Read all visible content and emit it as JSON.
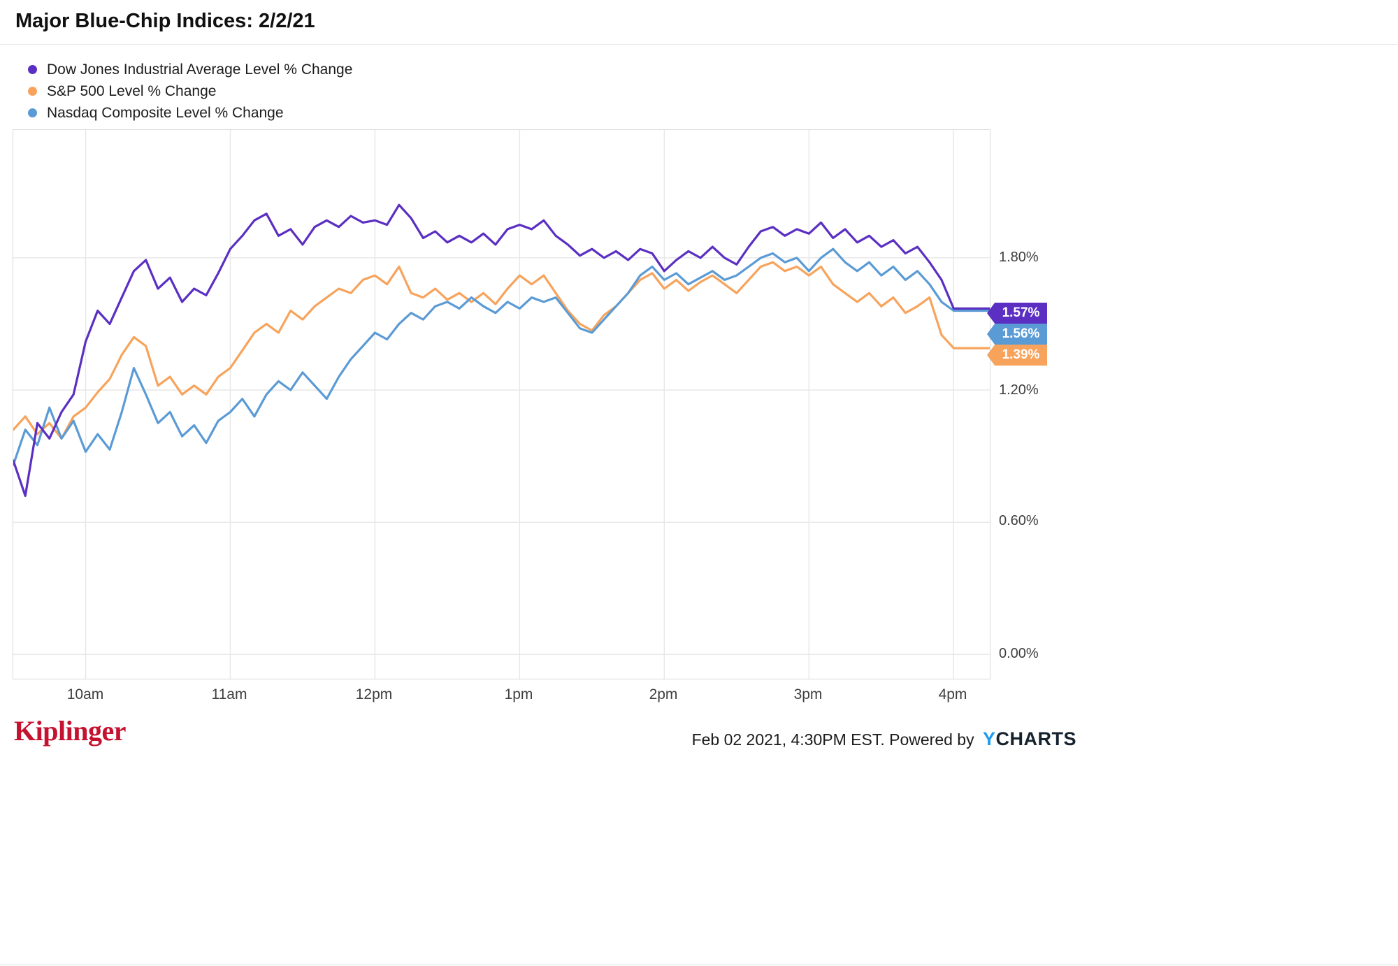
{
  "footer": {
    "publisher": "Kiplinger",
    "timestamp": "Feb 02 2021, 4:30PM EST.",
    "powered_by": "Powered by",
    "brand_y": "Y",
    "brand_rest": "CHARTS"
  },
  "chart_data": {
    "type": "line",
    "title": "Major Blue-Chip Indices: 2/2/21",
    "xlabel": "",
    "ylabel": "Level % Change",
    "grid": true,
    "legend_position": "top-left",
    "xlim": [
      9.5,
      16.25
    ],
    "ylim": [
      -0.11,
      2.38
    ],
    "x_axis": {
      "unit": "time of day",
      "start_hour": 9.5,
      "step_minutes": 5,
      "tick_hours": [
        10,
        11,
        12,
        13,
        14,
        15,
        16
      ],
      "tick_labels": [
        "10am",
        "11am",
        "12pm",
        "1pm",
        "2pm",
        "3pm",
        "4pm"
      ]
    },
    "y_axis": {
      "unit": "%",
      "tick_values": [
        1.8,
        1.2,
        0.6,
        0.0
      ],
      "tick_labels": [
        "1.80%",
        "1.20%",
        "0.60%",
        "0.00%"
      ]
    },
    "draw_order": [
      1,
      2,
      0
    ],
    "tag_order": [
      0,
      2,
      1
    ],
    "x_end_extend": 16.25,
    "series": [
      {
        "name": "Dow Jones Industrial Average Level % Change",
        "color": "#5a2fc2",
        "end_label": "1.57%",
        "end_value": 1.57,
        "values": [
          0.88,
          0.72,
          1.05,
          0.98,
          1.1,
          1.18,
          1.42,
          1.56,
          1.5,
          1.62,
          1.74,
          1.79,
          1.66,
          1.71,
          1.6,
          1.66,
          1.63,
          1.73,
          1.84,
          1.9,
          1.97,
          2.0,
          1.9,
          1.93,
          1.86,
          1.94,
          1.97,
          1.94,
          1.99,
          1.96,
          1.97,
          1.95,
          2.04,
          1.98,
          1.89,
          1.92,
          1.87,
          1.9,
          1.87,
          1.91,
          1.86,
          1.93,
          1.95,
          1.93,
          1.97,
          1.9,
          1.86,
          1.81,
          1.84,
          1.8,
          1.83,
          1.79,
          1.84,
          1.82,
          1.74,
          1.79,
          1.83,
          1.8,
          1.85,
          1.8,
          1.77,
          1.85,
          1.92,
          1.94,
          1.9,
          1.93,
          1.91,
          1.96,
          1.89,
          1.93,
          1.87,
          1.9,
          1.85,
          1.88,
          1.82,
          1.85,
          1.78,
          1.7,
          1.57
        ]
      },
      {
        "name": "S&P 500 Level % Change",
        "color": "#f7a35c",
        "end_label": "1.39%",
        "end_value": 1.39,
        "values": [
          1.02,
          1.08,
          1.0,
          1.05,
          0.98,
          1.08,
          1.12,
          1.19,
          1.25,
          1.36,
          1.44,
          1.4,
          1.22,
          1.26,
          1.18,
          1.22,
          1.18,
          1.26,
          1.3,
          1.38,
          1.46,
          1.5,
          1.46,
          1.56,
          1.52,
          1.58,
          1.62,
          1.66,
          1.64,
          1.7,
          1.72,
          1.68,
          1.76,
          1.64,
          1.62,
          1.66,
          1.61,
          1.64,
          1.6,
          1.64,
          1.59,
          1.66,
          1.72,
          1.68,
          1.72,
          1.64,
          1.56,
          1.5,
          1.47,
          1.54,
          1.58,
          1.64,
          1.7,
          1.73,
          1.66,
          1.7,
          1.65,
          1.69,
          1.72,
          1.68,
          1.64,
          1.7,
          1.76,
          1.78,
          1.74,
          1.76,
          1.72,
          1.76,
          1.68,
          1.64,
          1.6,
          1.64,
          1.58,
          1.62,
          1.55,
          1.58,
          1.62,
          1.45,
          1.39
        ]
      },
      {
        "name": "Nasdaq Composite Level % Change",
        "color": "#5b9bd5",
        "end_label": "1.56%",
        "end_value": 1.56,
        "values": [
          0.86,
          1.02,
          0.95,
          1.12,
          0.98,
          1.06,
          0.92,
          1.0,
          0.93,
          1.1,
          1.3,
          1.18,
          1.05,
          1.1,
          0.99,
          1.04,
          0.96,
          1.06,
          1.1,
          1.16,
          1.08,
          1.18,
          1.24,
          1.2,
          1.28,
          1.22,
          1.16,
          1.26,
          1.34,
          1.4,
          1.46,
          1.43,
          1.5,
          1.55,
          1.52,
          1.58,
          1.6,
          1.57,
          1.62,
          1.58,
          1.55,
          1.6,
          1.57,
          1.62,
          1.6,
          1.62,
          1.55,
          1.48,
          1.46,
          1.52,
          1.58,
          1.64,
          1.72,
          1.76,
          1.7,
          1.73,
          1.68,
          1.71,
          1.74,
          1.7,
          1.72,
          1.76,
          1.8,
          1.82,
          1.78,
          1.8,
          1.74,
          1.8,
          1.84,
          1.78,
          1.74,
          1.78,
          1.72,
          1.76,
          1.7,
          1.74,
          1.68,
          1.6,
          1.56
        ]
      }
    ]
  }
}
